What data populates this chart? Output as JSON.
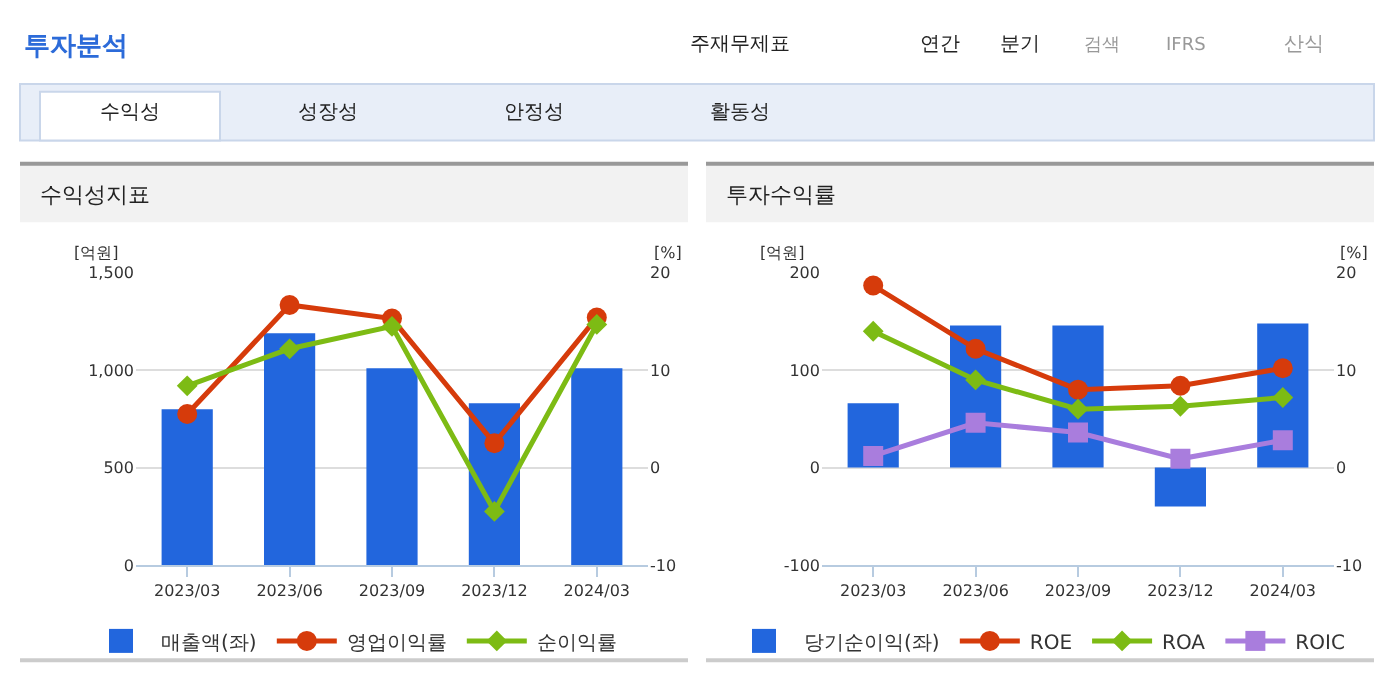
{
  "chart_data": [
    {
      "type": "other",
      "title": "투자분석",
      "annotations": [
        "주재무제표",
        "연간",
        "분기",
        "검색",
        "IFRS",
        "산식",
        "수익성",
        "성장성",
        "안정성",
        "활동성"
      ]
    },
    {
      "type": "bar",
      "title": "수익성지표",
      "ylabel": "[억원]",
      "y2label": "[%]",
      "categories": [
        "2023/03",
        "2023/06",
        "2023/09",
        "2023/12",
        "2024/03"
      ],
      "series": [
        {
          "name": "매출액(좌)",
          "type": "bar",
          "color": "#2266dd",
          "values": [
            800,
            1190,
            1010,
            830,
            1010
          ]
        },
        {
          "name": "영업이익률",
          "type": "line",
          "axis": "y2",
          "marker": "circle",
          "color": "#d63b0b",
          "values": [
            5.5,
            16.7,
            15.3,
            2.5,
            15.4
          ]
        },
        {
          "name": "순이익률",
          "type": "line",
          "axis": "y2",
          "marker": "diamond",
          "color": "#7dbb14",
          "values": [
            8.4,
            12.2,
            14.5,
            -4.5,
            14.7
          ]
        }
      ],
      "ylim": [
        0,
        1500
      ],
      "yticks": [
        0,
        500,
        {
          "value": 1000,
          "label": "1,000"
        },
        {
          "value": 1500,
          "label": "1,500"
        }
      ],
      "y2lim": [
        -10,
        20
      ],
      "y2ticks": [
        -10,
        0,
        10,
        20
      ],
      "grid": "y",
      "legend": "bottom"
    },
    {
      "type": "bar",
      "title": "투자수익률",
      "ylabel": "[억원]",
      "y2label": "[%]",
      "categories": [
        "2023/03",
        "2023/06",
        "2023/09",
        "2023/12",
        "2024/03"
      ],
      "series": [
        {
          "name": "당기순이익(좌)",
          "type": "bar",
          "color": "#2266dd",
          "values": [
            66,
            146,
            146,
            -40,
            148
          ]
        },
        {
          "name": "ROE",
          "type": "line",
          "axis": "y2",
          "marker": "circle",
          "color": "#d63b0b",
          "values": [
            18.7,
            12.2,
            8.0,
            8.4,
            10.2
          ]
        },
        {
          "name": "ROA",
          "type": "line",
          "axis": "y2",
          "marker": "diamond",
          "color": "#7dbb14",
          "values": [
            14.0,
            9.0,
            6.0,
            6.3,
            7.2
          ]
        },
        {
          "name": "ROIC",
          "type": "line",
          "axis": "y2",
          "marker": "square",
          "color": "#a97ddd",
          "values": [
            1.2,
            4.6,
            3.6,
            0.9,
            2.8
          ]
        }
      ],
      "ylim": [
        -100,
        200
      ],
      "yticks": [
        -100,
        0,
        100,
        200
      ],
      "y2lim": [
        -10,
        20
      ],
      "y2ticks": [
        -10,
        0,
        10,
        20
      ],
      "grid": "y",
      "legend": "bottom"
    }
  ]
}
